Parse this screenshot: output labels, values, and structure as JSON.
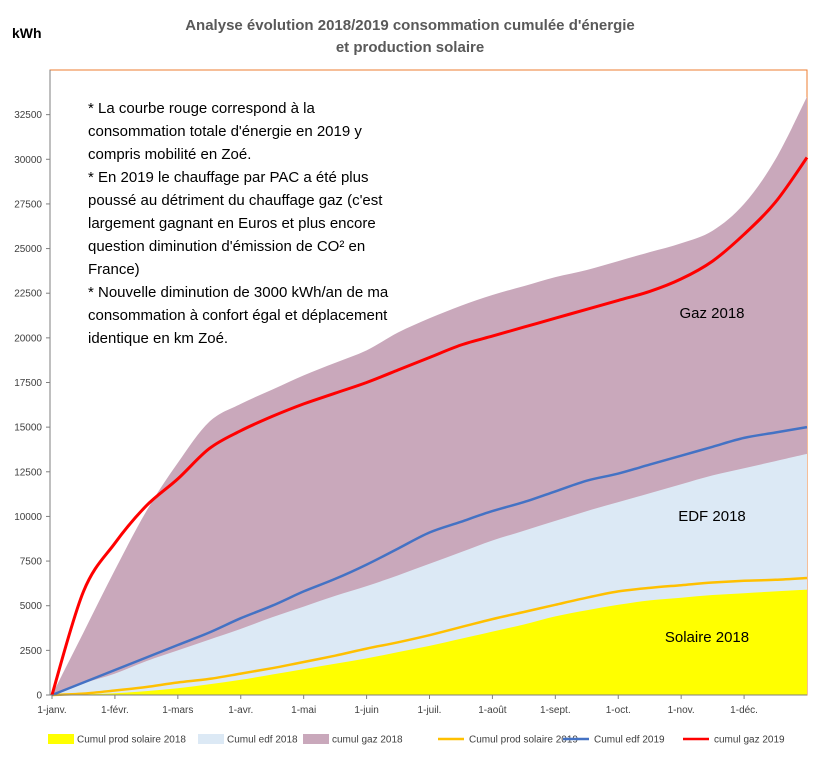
{
  "chart_data": {
    "type": "area",
    "title_lines": [
      "Analyse évolution 2018/2019 consommation cumulée d'énergie",
      "et production solaire"
    ],
    "ylabel": "kWh",
    "ylim": [
      0,
      35000
    ],
    "yticks": [
      0,
      2500,
      5000,
      7500,
      10000,
      12500,
      15000,
      17500,
      20000,
      22500,
      25000,
      27500,
      30000,
      32500
    ],
    "yticklabels": [
      "0",
      "2500",
      "5000",
      "7500",
      "10000",
      "12500",
      "15000",
      "17500",
      "20000",
      "22500",
      "25000",
      "27500",
      "30000",
      "32500"
    ],
    "x_categories": [
      "1-janv.",
      "1-févr.",
      "1-mars",
      "1-avr.",
      "1-mai",
      "1-juin",
      "1-juil.",
      "1-août",
      "1-sept.",
      "1-oct.",
      "1-nov.",
      "1-déc."
    ],
    "grid": false,
    "legend_position": "bottom",
    "x": [
      0,
      0.5,
      1,
      1.5,
      2,
      2.5,
      3,
      3.5,
      4,
      4.5,
      5,
      5.5,
      6,
      6.5,
      7,
      7.5,
      8,
      8.5,
      9,
      9.5,
      10,
      10.5,
      11,
      11.5,
      12
    ],
    "series": [
      {
        "name": "Cumul prod solaire 2018",
        "kind": "area",
        "color": "#ffff00",
        "values": [
          0,
          40,
          100,
          220,
          380,
          600,
          850,
          1150,
          1450,
          1750,
          2050,
          2400,
          2750,
          3150,
          3550,
          3950,
          4400,
          4750,
          5050,
          5300,
          5450,
          5600,
          5700,
          5800,
          5900
        ]
      },
      {
        "name": "Cumul edf 2018",
        "kind": "area",
        "color": "#dce9f5",
        "values": [
          0,
          650,
          1200,
          1900,
          2500,
          3100,
          3700,
          4350,
          4950,
          5550,
          6100,
          6700,
          7350,
          8000,
          8650,
          9200,
          9750,
          10300,
          10800,
          11300,
          11800,
          12300,
          12700,
          13100,
          13500
        ]
      },
      {
        "name": "cumul gaz 2018",
        "kind": "area",
        "color": "#c9a8bb",
        "values": [
          0,
          3500,
          7000,
          10300,
          13000,
          15300,
          16300,
          17100,
          17900,
          18600,
          19300,
          20300,
          21100,
          21800,
          22400,
          22900,
          23400,
          23800,
          24300,
          24800,
          25300,
          26000,
          27500,
          30000,
          33500
        ]
      },
      {
        "name": "Cumul prod solaire 2019",
        "kind": "line",
        "color": "#ffc000",
        "values": [
          0,
          80,
          250,
          450,
          700,
          900,
          1200,
          1500,
          1850,
          2200,
          2600,
          2950,
          3350,
          3800,
          4250,
          4650,
          5050,
          5450,
          5800,
          6000,
          6150,
          6300,
          6400,
          6450,
          6550
        ]
      },
      {
        "name": "Cumul edf 2019",
        "kind": "line",
        "color": "#4472c4",
        "values": [
          0,
          700,
          1400,
          2100,
          2800,
          3500,
          4300,
          5000,
          5800,
          6500,
          7300,
          8200,
          9100,
          9700,
          10300,
          10800,
          11400,
          12000,
          12400,
          12900,
          13400,
          13900,
          14400,
          14700,
          15000
        ]
      },
      {
        "name": "cumul gaz 2019",
        "kind": "line",
        "color": "#ff0000",
        "values": [
          0,
          5800,
          8500,
          10600,
          12100,
          13800,
          14800,
          15600,
          16300,
          16900,
          17500,
          18200,
          18900,
          19600,
          20100,
          20600,
          21100,
          21600,
          22100,
          22600,
          23300,
          24300,
          25800,
          27600,
          30100
        ]
      }
    ],
    "annotations": [
      "* La courbe rouge correspond à la",
      "consommation totale d'énergie en 2019 y",
      "compris mobilité en Zoé.",
      "* En 2019 le chauffage par PAC a été plus",
      "poussé au détriment du chauffage gaz (c'est",
      "largement gagnant en Euros et plus encore",
      "question diminution d'émission de CO² en",
      "France)",
      "* Nouvelle diminution de 3000 kWh/an de ma",
      "consommation à confort égal et déplacement",
      "identique en km Zoé."
    ],
    "area_labels": [
      "Gaz 2018",
      "EDF 2018",
      "Solaire 2018"
    ]
  }
}
